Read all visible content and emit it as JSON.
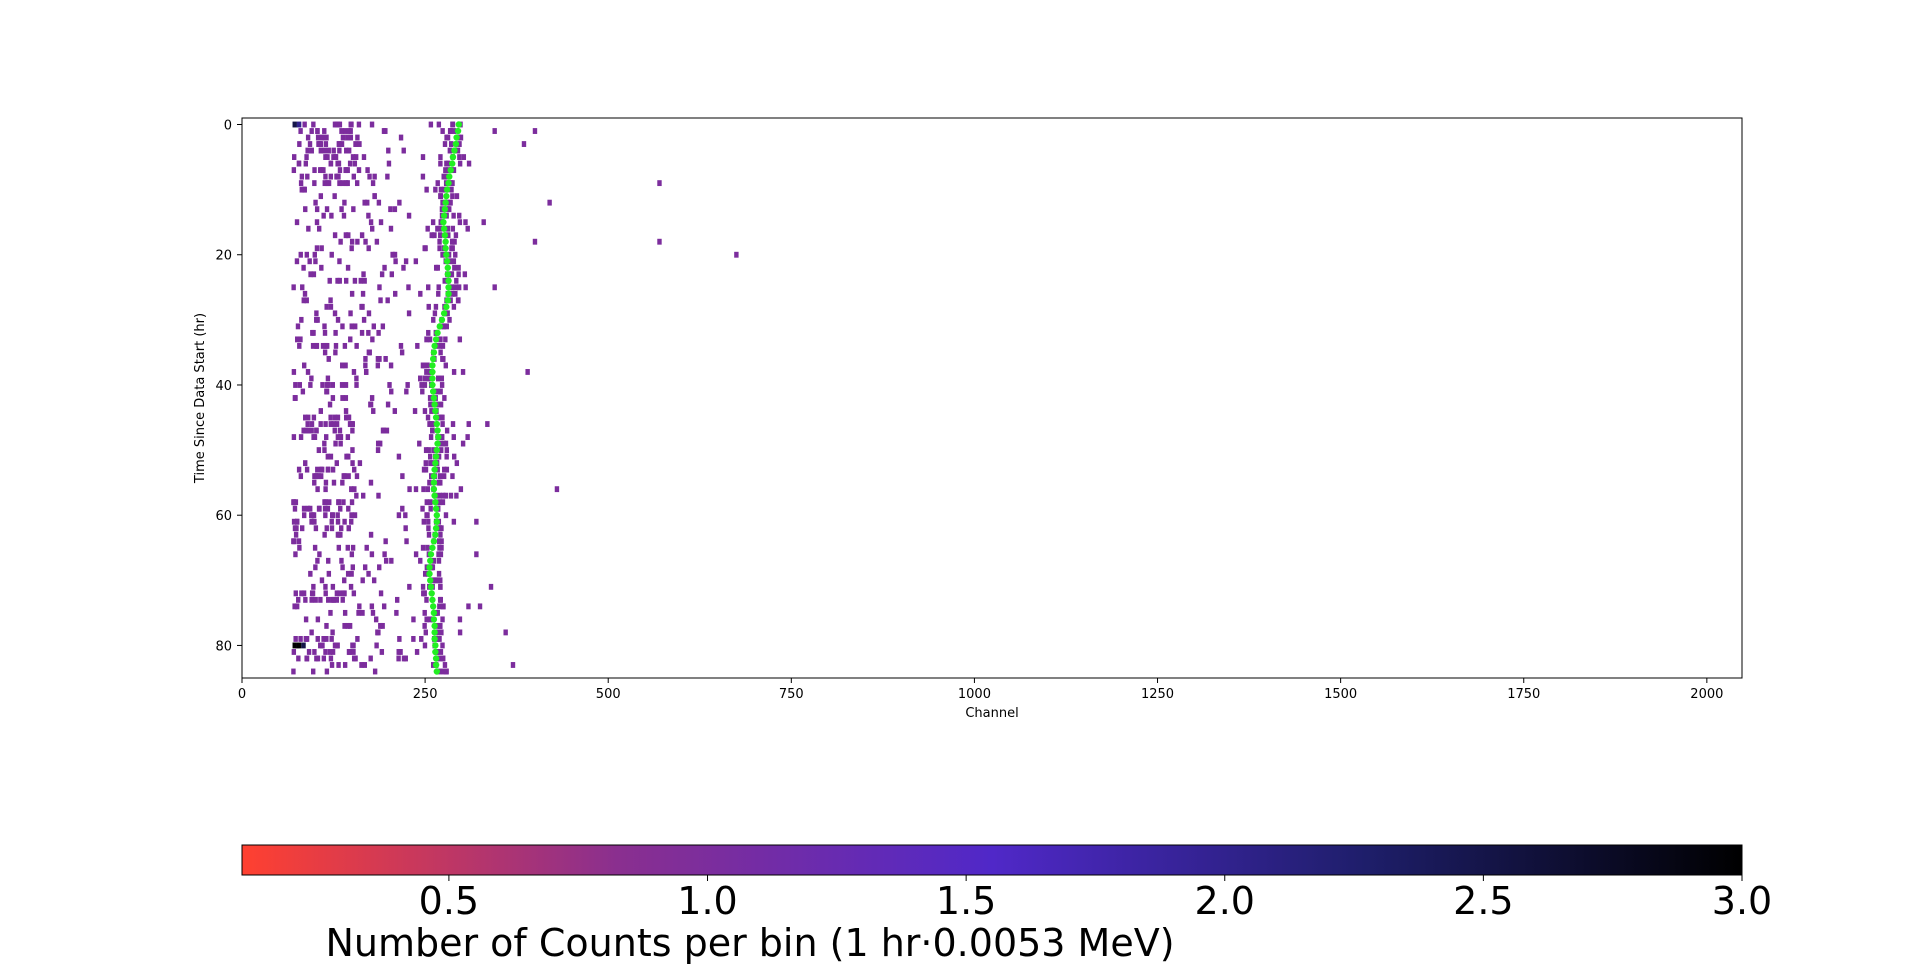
{
  "chart_data": {
    "type": "heatmap",
    "xlabel": "Channel",
    "ylabel": "Time Since Data Start (hr)",
    "xlim": [
      0,
      2048
    ],
    "ylim": [
      85,
      -1
    ],
    "x_ticks": [
      0,
      250,
      500,
      750,
      1000,
      1250,
      1500,
      1750,
      2000
    ],
    "y_ticks": [
      0,
      20,
      40,
      60,
      80
    ],
    "grid": false,
    "peak_series": {
      "color": "#22ee22",
      "x": [
        296,
        295,
        293,
        292,
        290,
        288,
        287,
        285,
        283,
        282,
        280,
        279,
        278,
        277,
        276,
        275,
        276,
        277,
        278,
        278,
        279,
        280,
        281,
        281,
        282,
        282,
        282,
        281,
        279,
        276,
        273,
        270,
        267,
        265,
        263,
        262,
        261,
        260,
        260,
        260,
        260,
        261,
        262,
        263,
        264,
        265,
        266,
        267,
        268,
        267,
        266,
        265,
        264,
        263,
        262,
        262,
        262,
        263,
        264,
        265,
        266,
        266,
        265,
        264,
        262,
        260,
        258,
        257,
        256,
        256,
        257,
        258,
        259,
        260,
        261,
        262,
        262,
        263,
        263,
        263,
        264,
        264,
        265,
        265,
        266
      ],
      "y": [
        0,
        1,
        2,
        3,
        4,
        5,
        6,
        7,
        8,
        9,
        10,
        11,
        12,
        13,
        14,
        15,
        16,
        17,
        18,
        19,
        20,
        21,
        22,
        23,
        24,
        25,
        26,
        27,
        28,
        29,
        30,
        31,
        32,
        33,
        34,
        35,
        36,
        37,
        38,
        39,
        40,
        41,
        42,
        43,
        44,
        45,
        46,
        47,
        48,
        49,
        50,
        51,
        52,
        53,
        54,
        55,
        56,
        57,
        58,
        59,
        60,
        61,
        62,
        63,
        64,
        65,
        66,
        67,
        68,
        69,
        70,
        71,
        72,
        73,
        74,
        75,
        76,
        77,
        78,
        79,
        80,
        81,
        82,
        83,
        84
      ]
    },
    "dense_rows": [
      0,
      1,
      2,
      3,
      4,
      5,
      6,
      7,
      8,
      9,
      34,
      40,
      45,
      46,
      47,
      48,
      53,
      54,
      58,
      59,
      60,
      61,
      62,
      72,
      73,
      79,
      80,
      81,
      82
    ],
    "high_count_cells": [
      {
        "x": 72,
        "y": 80,
        "value": 3
      },
      {
        "x": 78,
        "y": 80,
        "value": 3
      },
      {
        "x": 84,
        "y": 80,
        "value": 2.5
      },
      {
        "x": 72,
        "y": 0,
        "value": 2.5
      },
      {
        "x": 78,
        "y": 0,
        "value": 2
      }
    ],
    "sparse_cells": [
      {
        "x": 400,
        "y": 1
      },
      {
        "x": 345,
        "y": 1
      },
      {
        "x": 385,
        "y": 3
      },
      {
        "x": 570,
        "y": 9
      },
      {
        "x": 420,
        "y": 12
      },
      {
        "x": 400,
        "y": 18
      },
      {
        "x": 570,
        "y": 18
      },
      {
        "x": 675,
        "y": 20
      },
      {
        "x": 390,
        "y": 38
      },
      {
        "x": 430,
        "y": 56
      },
      {
        "x": 320,
        "y": 61
      },
      {
        "x": 325,
        "y": 74
      },
      {
        "x": 360,
        "y": 78
      },
      {
        "x": 370,
        "y": 83
      },
      {
        "x": 310,
        "y": 6
      },
      {
        "x": 330,
        "y": 15
      },
      {
        "x": 345,
        "y": 25
      },
      {
        "x": 335,
        "y": 46
      },
      {
        "x": 320,
        "y": 66
      },
      {
        "x": 340,
        "y": 71
      }
    ],
    "colorbar": {
      "label": "Number of Counts per bin (1 hr·0.0053 MeV)",
      "min": 0.1,
      "max": 3.0,
      "ticks": [
        "0.5",
        "1.0",
        "1.5",
        "2.0",
        "2.5",
        "3.0"
      ],
      "tick_values": [
        0.5,
        1.0,
        1.5,
        2.0,
        2.5,
        3.0
      ],
      "colors": [
        "#ff4030",
        "#8a2f8f",
        "#5028c8",
        "#1e1e6a",
        "#000000"
      ]
    }
  }
}
